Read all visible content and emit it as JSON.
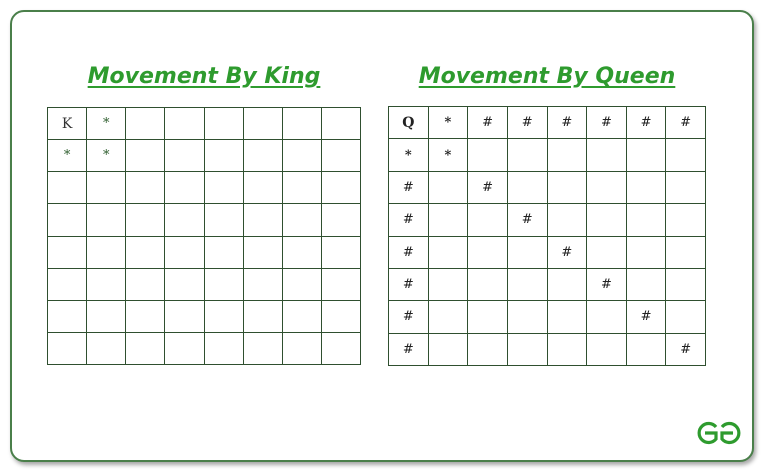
{
  "king": {
    "title": "Movement By King",
    "grid": [
      [
        "K",
        "*",
        "",
        "",
        "",
        "",
        "",
        ""
      ],
      [
        "*",
        "*",
        "",
        "",
        "",
        "",
        "",
        ""
      ],
      [
        "",
        "",
        "",
        "",
        "",
        "",
        "",
        ""
      ],
      [
        "",
        "",
        "",
        "",
        "",
        "",
        "",
        ""
      ],
      [
        "",
        "",
        "",
        "",
        "",
        "",
        "",
        ""
      ],
      [
        "",
        "",
        "",
        "",
        "",
        "",
        "",
        ""
      ],
      [
        "",
        "",
        "",
        "",
        "",
        "",
        "",
        ""
      ],
      [
        "",
        "",
        "",
        "",
        "",
        "",
        "",
        ""
      ]
    ]
  },
  "queen": {
    "title": "Movement By Queen",
    "grid": [
      [
        "Q",
        "*",
        "#",
        "#",
        "#",
        "#",
        "#",
        "#"
      ],
      [
        "*",
        "*",
        "",
        "",
        "",
        "",
        "",
        ""
      ],
      [
        "#",
        "",
        "#",
        "",
        "",
        "",
        "",
        ""
      ],
      [
        "#",
        "",
        "",
        "#",
        "",
        "",
        "",
        ""
      ],
      [
        "#",
        "",
        "",
        "",
        "#",
        "",
        "",
        ""
      ],
      [
        "#",
        "",
        "",
        "",
        "",
        "#",
        "",
        ""
      ],
      [
        "#",
        "",
        "",
        "",
        "",
        "",
        "#",
        ""
      ],
      [
        "#",
        "",
        "",
        "",
        "",
        "",
        "",
        "#"
      ]
    ]
  },
  "colors": {
    "title": "#2e9b2e",
    "frame": "#4a7f4a",
    "logo": "#2e9b2e"
  },
  "logo_icon": "geeksforgeeks-logo-icon"
}
